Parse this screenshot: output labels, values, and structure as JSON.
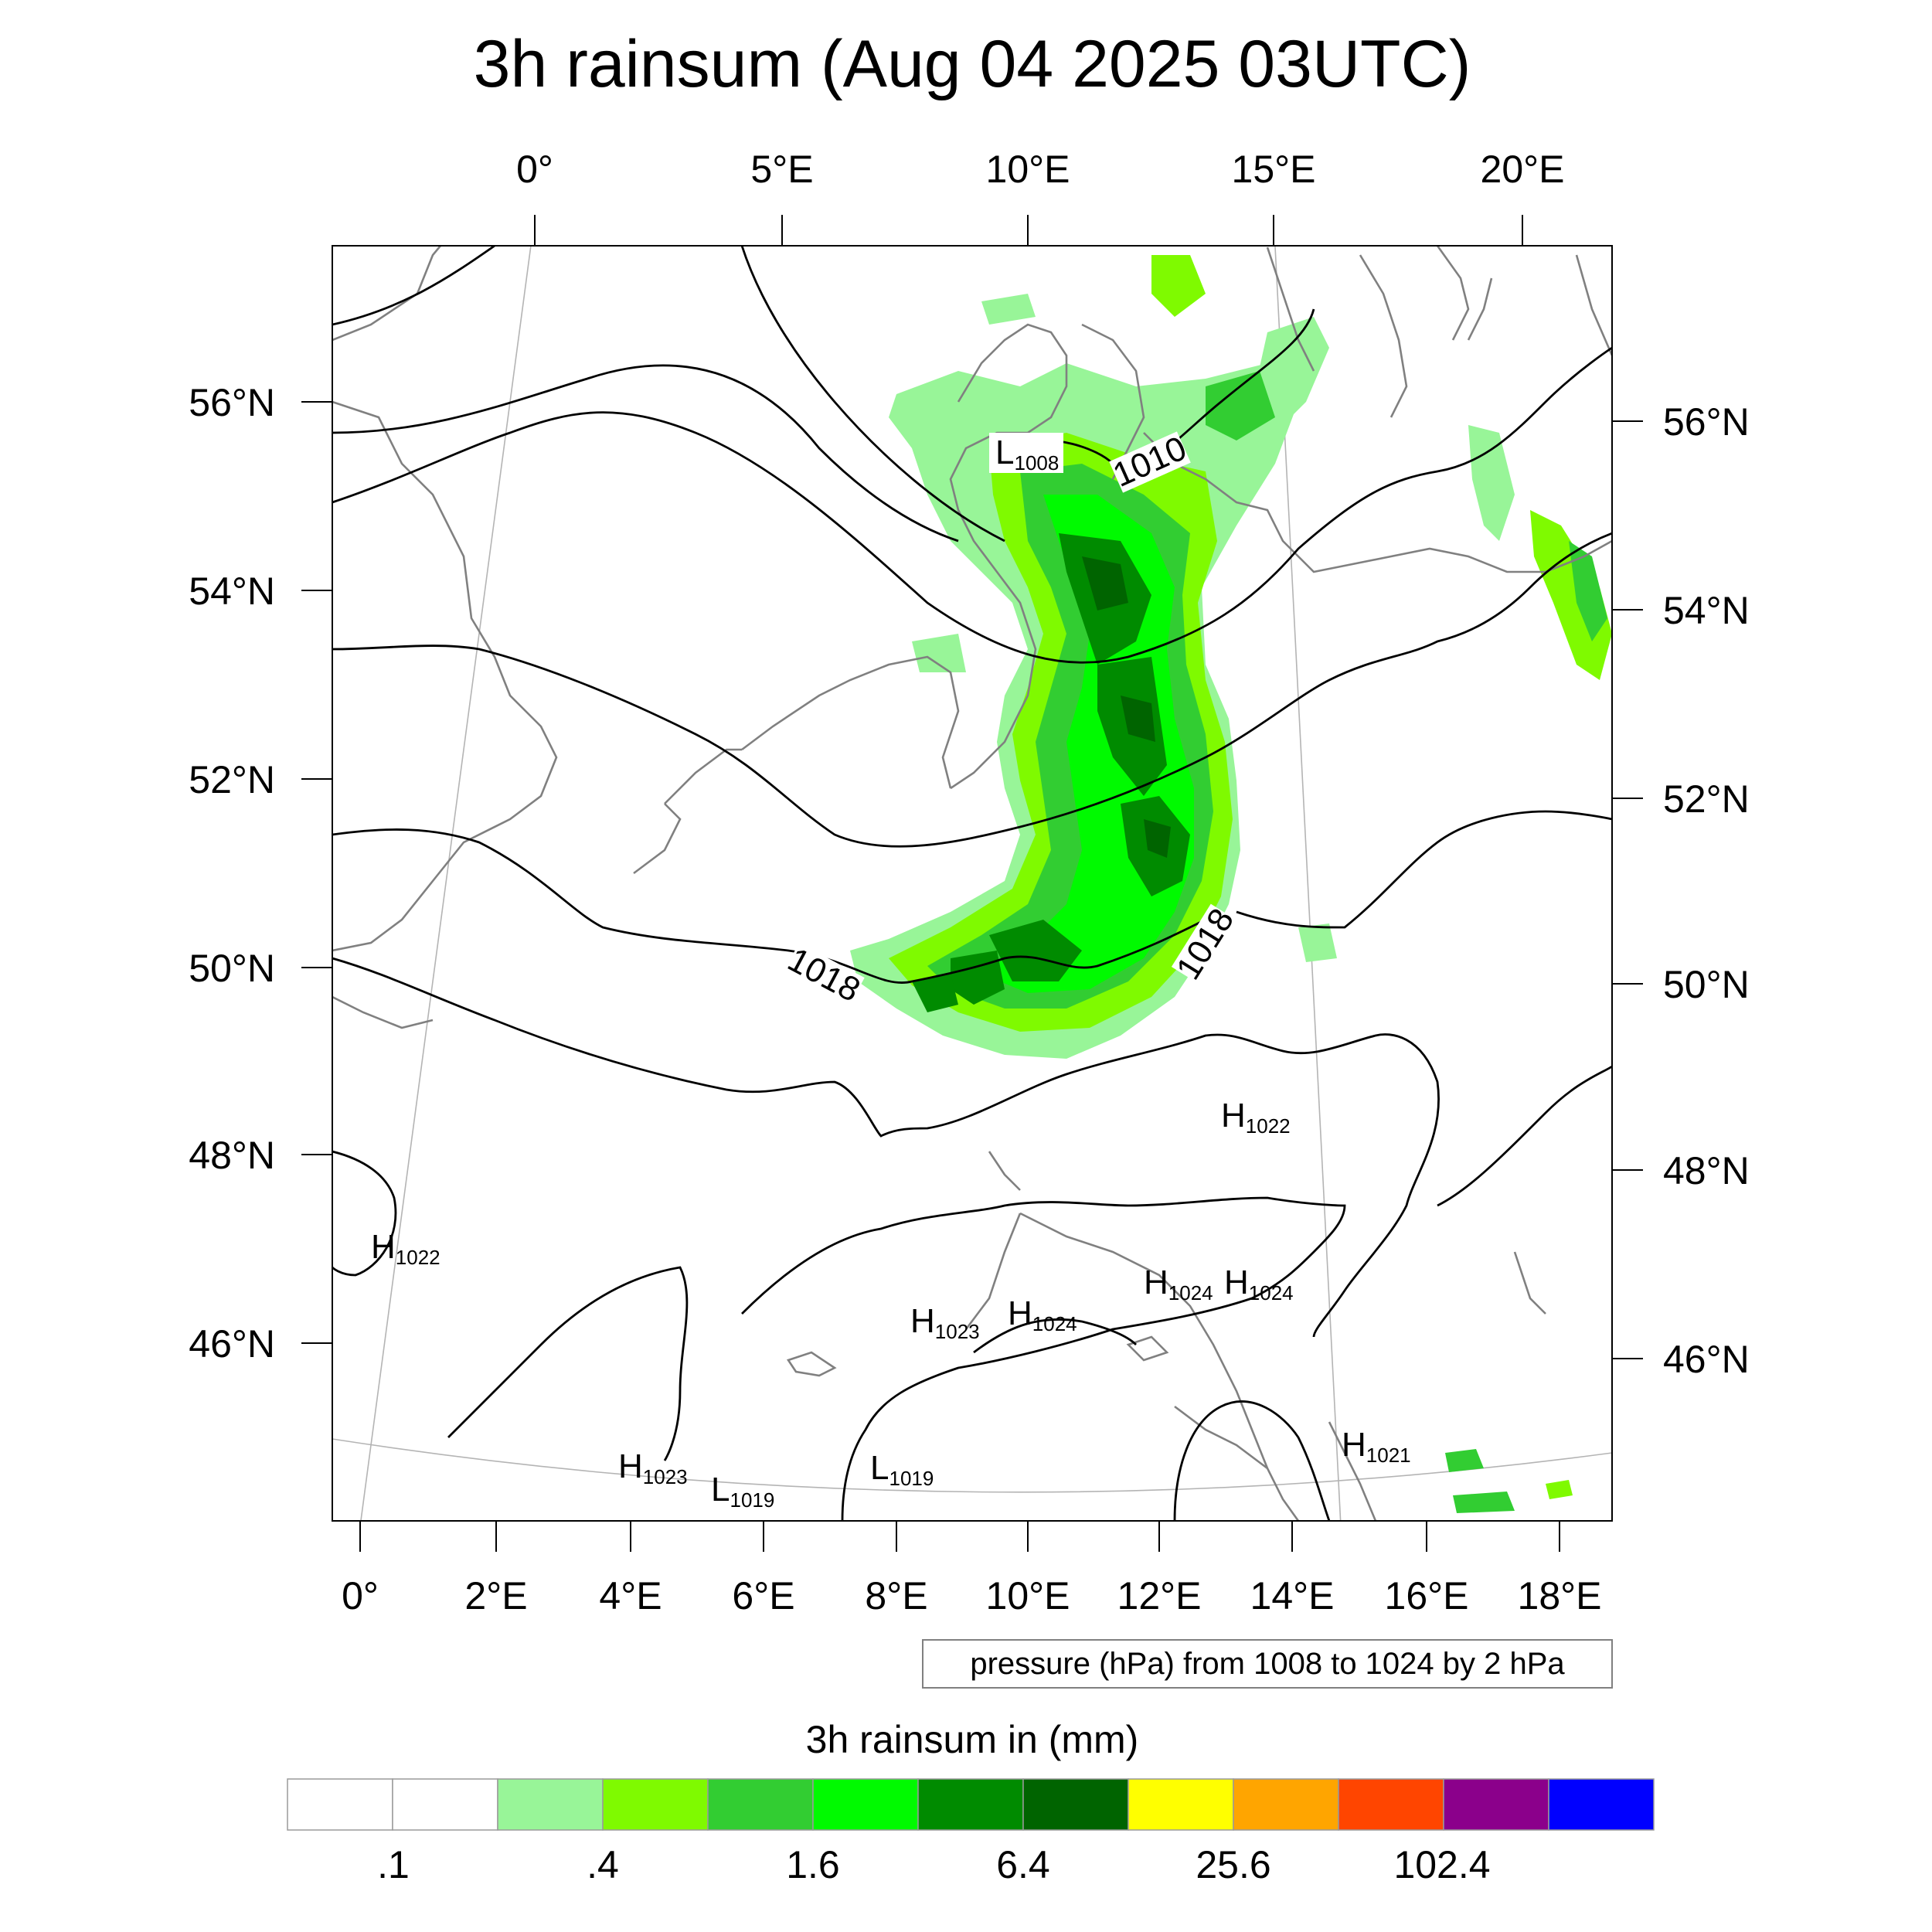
{
  "title": "3h rainsum (Aug 04 2025 03UTC)",
  "axes": {
    "top_lon_labels": [
      "0°",
      "5°E",
      "10°E",
      "15°E",
      "20°E"
    ],
    "bottom_lon_labels": [
      "0°",
      "2°E",
      "4°E",
      "6°E",
      "8°E",
      "10°E",
      "12°E",
      "14°E",
      "16°E",
      "18°E"
    ],
    "left_lat_labels": [
      "56°N",
      "54°N",
      "52°N",
      "50°N",
      "48°N",
      "46°N"
    ],
    "right_lat_labels": [
      "56°N",
      "54°N",
      "52°N",
      "50°N",
      "48°N",
      "46°N"
    ]
  },
  "isobar_labels": [
    "1010",
    "1018",
    "1018"
  ],
  "pressure_centers": [
    {
      "type": "L",
      "value": "1008"
    },
    {
      "type": "H",
      "value": "1022"
    },
    {
      "type": "H",
      "value": "1022"
    },
    {
      "type": "H",
      "value": "1024"
    },
    {
      "type": "H",
      "value": "1024"
    },
    {
      "type": "H",
      "value": "1023"
    },
    {
      "type": "H",
      "value": "1024"
    },
    {
      "type": "H",
      "value": "1021"
    },
    {
      "type": "H",
      "value": "1023"
    },
    {
      "type": "L",
      "value": "1019"
    },
    {
      "type": "L",
      "value": "1019"
    }
  ],
  "contour_note": "pressure (hPa) from 1008 to 1024 by 2 hPa",
  "colorbar": {
    "title": "3h rainsum in (mm)",
    "colors": [
      "#ffffff",
      "#ffffff",
      "#98f598",
      "#7ffa00",
      "#32cd32",
      "#00fa00",
      "#008b00",
      "#006400",
      "#ffff00",
      "#ffa500",
      "#ff4500",
      "#8b008b",
      "#0000ff"
    ],
    "tick_labels": [
      ".1",
      ".4",
      "1.6",
      "6.4",
      "25.6",
      "102.4"
    ]
  },
  "colors": {
    "coastline": "#808080",
    "isobar": "#000000",
    "graticule": "#b4b4b4"
  }
}
